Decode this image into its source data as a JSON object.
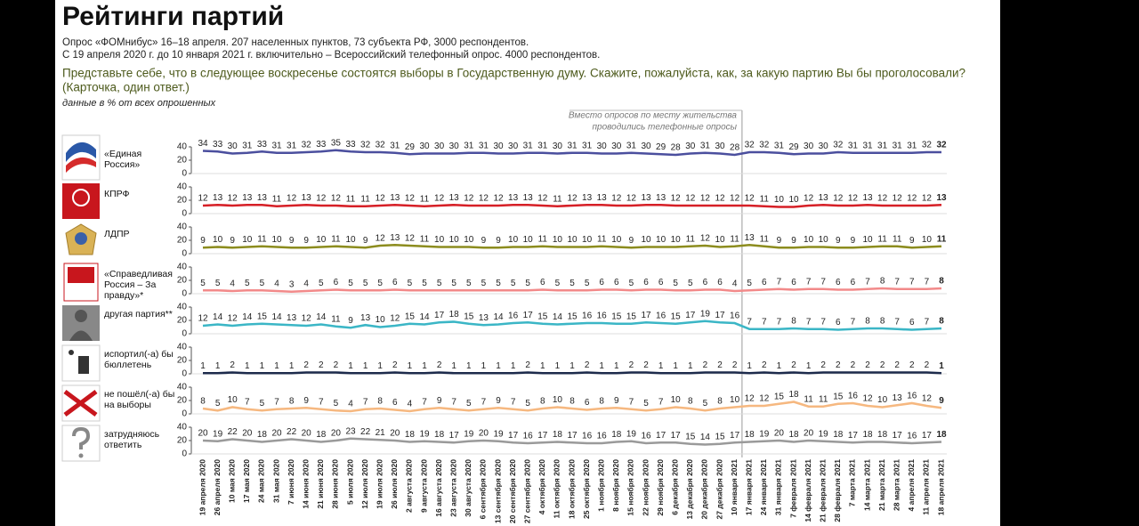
{
  "chart_data": {
    "type": "line",
    "title": "Рейтинги партий",
    "subtitle": [
      "Опрос «ФОМнибус» 16–18 апреля. 207 населенных пунктов, 73 субъекта РФ, 3000 респондентов.",
      "С 19 апреля 2020 г. до 10 января 2021 г. включительно – Всероссийский телефонный опрос. 4000 респондентов."
    ],
    "question": "Представьте себе, что в следующее воскресенье состоятся выборы в Государственную думу. Скажите, пожалуйста, как, за какую партию Вы бы проголосовали?",
    "question_note": "(Карточка, один ответ.)",
    "units_note": "данные в % от всех опрошенных",
    "annotation": [
      "Вместо опросов по месту жительства",
      "проводились телефонные опросы"
    ],
    "categories": [
      "19 апреля 2020",
      "26 апреля 2020",
      "10 мая 2020",
      "17 мая 2020",
      "24 мая 2020",
      "31 мая 2020",
      "7 июня 2020",
      "14 июня 2020",
      "21 июня 2020",
      "28 июня 2020",
      "5 июля 2020",
      "12 июля 2020",
      "19 июля 2020",
      "26 июля 2020",
      "2 августа 2020",
      "9 августа 2020",
      "16 августа 2020",
      "23 августа 2020",
      "30 августа 2020",
      "6 сентября 2020",
      "13 сентября 2020",
      "20 сентября 2020",
      "27 сентября 2020",
      "4 октября 2020",
      "11 октября 2020",
      "18 октября 2020",
      "25 октября 2020",
      "1 ноября 2020",
      "8 ноября 2020",
      "15 ноября 2020",
      "22 ноября 2020",
      "29 ноября 2020",
      "6 декабря 2020",
      "13 декабря 2020",
      "20 декабря 2020",
      "27 декабря 2020",
      "10 января 2021",
      "17 января 2021",
      "24 января 2021",
      "31 января 2021",
      "7 февраля 2021",
      "14 февраля 2021",
      "21 февраля 2021",
      "28 февраля 2021",
      "7 марта 2021",
      "14 марта 2021",
      "21 марта 2021",
      "28 марта 2021",
      "4 апреля 2021",
      "11 апреля 2021",
      "18 апреля 2021"
    ],
    "ylim": [
      0,
      40
    ],
    "yticks": [
      0,
      20,
      40
    ],
    "series": [
      {
        "name": "«Единая Россия»",
        "color": "#4b4f9e",
        "values": [
          34,
          33,
          30,
          31,
          33,
          31,
          31,
          32,
          33,
          35,
          33,
          32,
          32,
          31,
          29,
          30,
          30,
          30,
          31,
          31,
          30,
          30,
          31,
          31,
          30,
          31,
          31,
          30,
          30,
          31,
          30,
          29,
          28,
          30,
          31,
          30,
          28,
          32,
          32,
          31,
          29,
          30,
          30,
          32,
          31,
          31,
          31,
          31,
          31,
          32,
          32
        ]
      },
      {
        "name": "КПРФ",
        "color": "#d61f26",
        "values": [
          12,
          13,
          12,
          13,
          13,
          11,
          12,
          13,
          12,
          12,
          11,
          11,
          12,
          13,
          12,
          11,
          12,
          13,
          12,
          12,
          12,
          13,
          13,
          12,
          11,
          12,
          13,
          13,
          12,
          12,
          13,
          13,
          12,
          12,
          12,
          12,
          12,
          12,
          11,
          10,
          10,
          12,
          13,
          12,
          12,
          13,
          12,
          12,
          12,
          12,
          13
        ]
      },
      {
        "name": "ЛДПР",
        "color": "#8c8c1e",
        "values": [
          9,
          10,
          9,
          10,
          11,
          10,
          9,
          9,
          10,
          11,
          10,
          9,
          12,
          13,
          12,
          11,
          10,
          10,
          10,
          9,
          9,
          10,
          10,
          11,
          10,
          10,
          10,
          11,
          10,
          9,
          10,
          10,
          10,
          11,
          12,
          10,
          11,
          13,
          11,
          9,
          9,
          10,
          10,
          9,
          9,
          10,
          11,
          11,
          9,
          10,
          11
        ]
      },
      {
        "name": "«Справедливая Россия – За правду»*",
        "color": "#f28a8a",
        "values": [
          5,
          5,
          4,
          5,
          5,
          4,
          3,
          4,
          5,
          6,
          5,
          5,
          5,
          6,
          5,
          5,
          5,
          5,
          5,
          5,
          5,
          5,
          5,
          6,
          5,
          5,
          5,
          6,
          6,
          5,
          6,
          6,
          5,
          5,
          6,
          6,
          4,
          5,
          6,
          7,
          6,
          7,
          7,
          6,
          6,
          7,
          8,
          7,
          7,
          7,
          8
        ]
      },
      {
        "name": "другая партия**",
        "color": "#3bb6c6",
        "values": [
          12,
          14,
          12,
          14,
          15,
          14,
          13,
          12,
          14,
          11,
          9,
          13,
          10,
          12,
          15,
          14,
          17,
          18,
          15,
          13,
          14,
          16,
          17,
          15,
          14,
          15,
          16,
          16,
          15,
          15,
          17,
          16,
          15,
          17,
          19,
          17,
          16,
          7,
          7,
          7,
          8,
          7,
          7,
          6,
          7,
          8,
          8,
          7,
          6,
          7,
          8
        ]
      },
      {
        "name": "испортил(-а) бы бюллетень",
        "color": "#1d2b4c",
        "values": [
          1,
          1,
          2,
          1,
          1,
          1,
          1,
          2,
          2,
          2,
          1,
          1,
          1,
          2,
          1,
          1,
          2,
          1,
          1,
          1,
          1,
          1,
          2,
          1,
          1,
          1,
          2,
          1,
          1,
          2,
          2,
          1,
          1,
          1,
          2,
          2,
          2,
          1,
          2,
          1,
          2,
          1,
          2,
          2,
          2,
          2,
          2,
          2,
          2,
          2,
          1
        ]
      },
      {
        "name": "не пошёл(-а) бы на выборы",
        "color": "#f6b880",
        "values": [
          8,
          5,
          10,
          7,
          5,
          7,
          8,
          9,
          7,
          5,
          4,
          7,
          8,
          6,
          4,
          7,
          9,
          7,
          5,
          7,
          9,
          7,
          5,
          8,
          10,
          8,
          6,
          8,
          9,
          7,
          5,
          7,
          10,
          8,
          5,
          8,
          10,
          12,
          12,
          15,
          18,
          11,
          11,
          15,
          16,
          12,
          10,
          13,
          16,
          12,
          9
        ]
      },
      {
        "name": "затрудняюсь ответить",
        "color": "#9a9a9a",
        "values": [
          20,
          19,
          22,
          20,
          18,
          20,
          22,
          20,
          18,
          20,
          23,
          22,
          21,
          20,
          18,
          19,
          18,
          17,
          19,
          20,
          19,
          17,
          16,
          17,
          18,
          17,
          16,
          16,
          18,
          19,
          16,
          17,
          17,
          15,
          14,
          15,
          17,
          18,
          19,
          20,
          18,
          20,
          19,
          18,
          17,
          18,
          18,
          17,
          16,
          17,
          18
        ]
      }
    ]
  }
}
